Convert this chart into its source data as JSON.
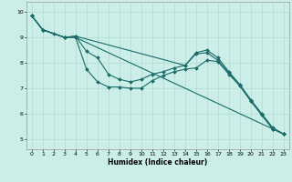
{
  "xlabel": "Humidex (Indice chaleur)",
  "bg_color": "#cceee8",
  "grid_color": "#aaddcc",
  "line_color": "#1a6b6b",
  "xlim": [
    -0.5,
    23.5
  ],
  "ylim": [
    4.6,
    10.4
  ],
  "yticks": [
    5,
    6,
    7,
    8,
    9,
    10
  ],
  "xticks": [
    0,
    1,
    2,
    3,
    4,
    5,
    6,
    7,
    8,
    9,
    10,
    11,
    12,
    13,
    14,
    15,
    16,
    17,
    18,
    19,
    20,
    21,
    22,
    23
  ],
  "lines": [
    {
      "x": [
        0,
        1,
        3,
        4,
        22,
        23
      ],
      "y": [
        9.85,
        9.3,
        9.0,
        9.0,
        5.4,
        5.2
      ]
    },
    {
      "x": [
        0,
        1,
        2,
        3,
        4,
        5,
        6,
        7,
        8,
        9,
        10,
        11,
        12,
        13,
        14,
        15,
        16,
        17,
        18,
        19,
        20,
        21,
        22,
        23
      ],
      "y": [
        9.85,
        9.3,
        9.15,
        9.0,
        9.0,
        7.75,
        7.25,
        7.05,
        7.05,
        7.0,
        7.0,
        7.3,
        7.5,
        7.65,
        7.75,
        7.8,
        8.1,
        8.05,
        7.55,
        7.1,
        6.5,
        5.95,
        5.4,
        5.2
      ]
    },
    {
      "x": [
        0,
        1,
        3,
        4,
        5,
        6,
        7,
        8,
        9,
        10,
        11,
        12,
        13,
        14,
        15,
        16,
        17,
        18,
        19,
        20,
        21,
        22,
        23
      ],
      "y": [
        9.85,
        9.3,
        9.0,
        9.05,
        8.45,
        8.2,
        7.55,
        7.35,
        7.25,
        7.35,
        7.55,
        7.65,
        7.8,
        7.9,
        8.35,
        8.4,
        8.1,
        7.6,
        7.1,
        6.5,
        5.95,
        5.4,
        5.2
      ]
    },
    {
      "x": [
        0,
        1,
        3,
        4,
        14,
        15,
        16,
        17,
        18,
        19,
        20,
        21,
        22,
        23
      ],
      "y": [
        9.85,
        9.3,
        9.0,
        9.05,
        7.9,
        8.4,
        8.5,
        8.2,
        7.65,
        7.15,
        6.55,
        6.0,
        5.45,
        5.2
      ]
    }
  ]
}
